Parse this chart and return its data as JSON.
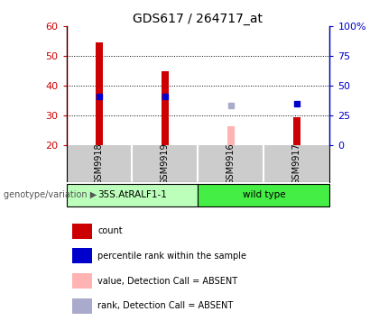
{
  "title": "GDS617 / 264717_at",
  "samples": [
    "GSM9918",
    "GSM9919",
    "GSM9916",
    "GSM9917"
  ],
  "count_values": [
    54.5,
    45.0,
    null,
    29.5
  ],
  "count_absent_values": [
    null,
    null,
    26.5,
    null
  ],
  "rank_values": [
    41.0,
    41.0,
    null,
    35.0
  ],
  "rank_absent_values": [
    null,
    null,
    33.5,
    null
  ],
  "ylim": [
    20,
    60
  ],
  "yticks_left": [
    20,
    30,
    40,
    50,
    60
  ],
  "yticks_right": [
    0,
    25,
    50,
    75,
    100
  ],
  "y2lim": [
    0,
    100
  ],
  "bar_width": 0.12,
  "marker_size": 5,
  "count_color": "#cc0000",
  "count_absent_color": "#ffb3b3",
  "rank_color": "#0000cc",
  "rank_absent_color": "#aaaacc",
  "bar_bg_color": "#cccccc",
  "group1_color": "#bbffbb",
  "group2_color": "#44ee44",
  "genotype_label": "genotype/variation",
  "legend_items": [
    {
      "color": "#cc0000",
      "label": "count"
    },
    {
      "color": "#0000cc",
      "label": "percentile rank within the sample"
    },
    {
      "color": "#ffb3b3",
      "label": "value, Detection Call = ABSENT"
    },
    {
      "color": "#aaaacc",
      "label": "rank, Detection Call = ABSENT"
    }
  ]
}
